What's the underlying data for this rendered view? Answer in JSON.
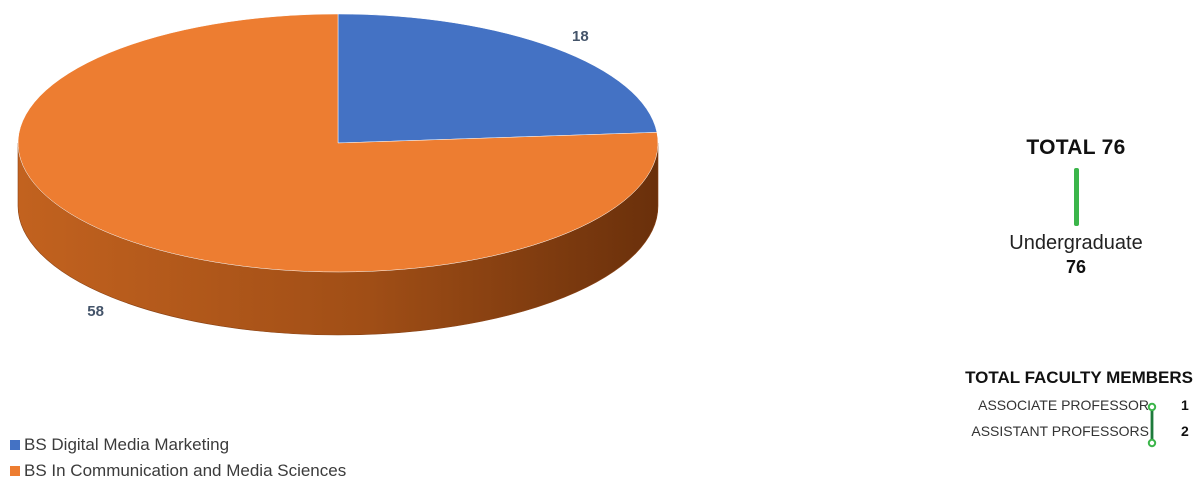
{
  "chart_data": {
    "type": "pie",
    "categories": [
      "BS Digital Media Marketing",
      "BS In Communication and Media Sciences"
    ],
    "values": [
      18,
      58
    ],
    "colors": [
      "#4472c4",
      "#ed7d31"
    ],
    "data_labels": [
      "18",
      "58"
    ],
    "legend_placement": "bottom-left",
    "style": "3d"
  },
  "legend": {
    "items": [
      {
        "label": "BS Digital Media Marketing",
        "color": "#4472c4"
      },
      {
        "label": "BS In Communication and Media Sciences",
        "color": "#ed7d31"
      }
    ]
  },
  "summary": {
    "total_label": "TOTAL 76",
    "level_label": "Undergraduate",
    "level_value": "76",
    "accent_color": "#3bb54a"
  },
  "faculty": {
    "title": "TOTAL FACULTY MEMBERS",
    "rows": [
      {
        "label": "ASSOCIATE PROFESSOR",
        "value": "1"
      },
      {
        "label": "ASSISTANT PROFESSORS",
        "value": "2"
      }
    ],
    "connector_color": "#1e7a3c"
  }
}
